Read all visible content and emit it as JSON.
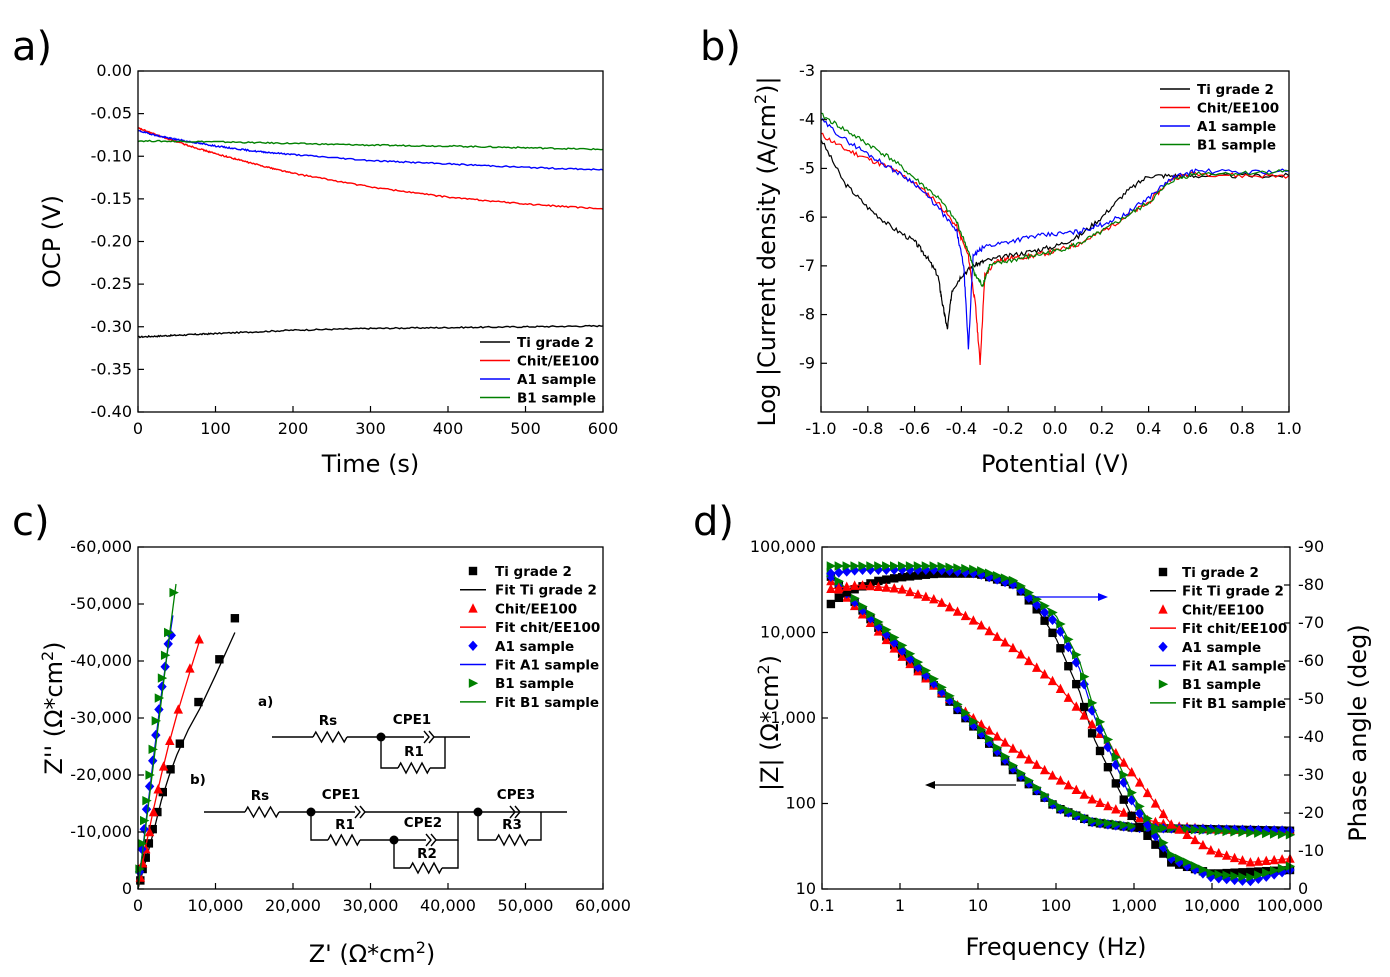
{
  "colors": {
    "ti": "#000000",
    "chit": "#ff0000",
    "a1": "#0000ff",
    "b1": "#008000",
    "right_axis": "#0000ff"
  },
  "panels": [
    {
      "label": "a)",
      "chart_data": {
        "type": "line",
        "xlabel": "Time (s)",
        "ylabel": "OCP (V)",
        "xlim": [
          0,
          600
        ],
        "ylim": [
          -0.4,
          0.0
        ],
        "xticks": [
          "0",
          "100",
          "200",
          "300",
          "400",
          "500",
          "600"
        ],
        "yticks": [
          "0.00",
          "-0.05",
          "-0.10",
          "-0.15",
          "-0.20",
          "-0.25",
          "-0.30",
          "-0.35",
          "-0.40"
        ],
        "series": [
          {
            "name": "Ti grade 2",
            "color": "ti",
            "x": [
              0,
              50,
              100,
              200,
              300,
              400,
              500,
              600
            ],
            "y": [
              -0.312,
              -0.31,
              -0.308,
              -0.304,
              -0.302,
              -0.301,
              -0.3,
              -0.299
            ]
          },
          {
            "name": "Chit/EE100",
            "color": "chit",
            "x": [
              0,
              30,
              60,
              100,
              150,
              200,
              300,
              400,
              500,
              600
            ],
            "y": [
              -0.067,
              -0.077,
              -0.086,
              -0.097,
              -0.109,
              -0.12,
              -0.136,
              -0.148,
              -0.156,
              -0.162
            ]
          },
          {
            "name": "A1 sample",
            "color": "a1",
            "x": [
              0,
              30,
              60,
              100,
              150,
              200,
              300,
              400,
              500,
              600
            ],
            "y": [
              -0.07,
              -0.077,
              -0.082,
              -0.088,
              -0.094,
              -0.098,
              -0.105,
              -0.109,
              -0.113,
              -0.116
            ]
          },
          {
            "name": "B1 sample",
            "color": "b1",
            "x": [
              0,
              100,
              200,
              300,
              400,
              500,
              600
            ],
            "y": [
              -0.082,
              -0.083,
              -0.085,
              -0.087,
              -0.088,
              -0.09,
              -0.092
            ]
          }
        ]
      }
    },
    {
      "label": "b)",
      "chart_data": {
        "type": "line",
        "xlabel": "Potential (V)",
        "ylabel_pre": "Log |Current density (A/cm",
        "ylabel_sup": "2",
        "ylabel_post": ")|",
        "xlim": [
          -1.0,
          1.0
        ],
        "ylim": [
          -10,
          -3
        ],
        "xticks": [
          "-1.0",
          "-0.8",
          "-0.6",
          "-0.4",
          "-0.2",
          "0.0",
          "0.2",
          "0.4",
          "0.6",
          "0.8",
          "1.0"
        ],
        "yticks": [
          "-3",
          "-4",
          "-5",
          "-6",
          "-7",
          "-8",
          "-9",
          "-10"
        ],
        "series": [
          {
            "name": "Ti grade 2",
            "color": "ti",
            "x": [
              -1.0,
              -0.9,
              -0.8,
              -0.7,
              -0.6,
              -0.55,
              -0.5,
              -0.48,
              -0.46,
              -0.44,
              -0.4,
              -0.35,
              -0.3,
              -0.2,
              -0.1,
              0.0,
              0.1,
              0.2,
              0.3,
              0.4,
              0.5,
              0.6,
              0.8,
              1.0
            ],
            "y": [
              -4.4,
              -5.3,
              -5.8,
              -6.2,
              -6.5,
              -6.8,
              -7.2,
              -7.8,
              -8.3,
              -7.5,
              -7.2,
              -7.0,
              -6.9,
              -6.8,
              -6.7,
              -6.6,
              -6.4,
              -6.0,
              -5.5,
              -5.15,
              -5.15,
              -5.15,
              -5.15,
              -5.15
            ]
          },
          {
            "name": "Chit/EE100",
            "color": "chit",
            "x": [
              -1.0,
              -0.9,
              -0.8,
              -0.7,
              -0.6,
              -0.5,
              -0.42,
              -0.37,
              -0.34,
              -0.32,
              -0.3,
              -0.25,
              -0.2,
              -0.1,
              0.0,
              0.1,
              0.2,
              0.3,
              0.4,
              0.5,
              0.6,
              0.8,
              1.0
            ],
            "y": [
              -4.3,
              -4.6,
              -4.8,
              -5.0,
              -5.3,
              -5.7,
              -6.2,
              -6.8,
              -7.8,
              -9.0,
              -7.2,
              -6.9,
              -6.85,
              -6.8,
              -6.7,
              -6.55,
              -6.3,
              -6.0,
              -5.7,
              -5.2,
              -5.1,
              -5.15,
              -5.15
            ]
          },
          {
            "name": "A1 sample",
            "color": "a1",
            "x": [
              -1.0,
              -0.9,
              -0.8,
              -0.7,
              -0.6,
              -0.5,
              -0.42,
              -0.39,
              -0.37,
              -0.35,
              -0.3,
              -0.2,
              -0.1,
              0.0,
              0.1,
              0.2,
              0.3,
              0.4,
              0.5,
              0.6,
              0.8,
              1.0
            ],
            "y": [
              -4.0,
              -4.4,
              -4.7,
              -5.0,
              -5.3,
              -5.8,
              -6.3,
              -7.0,
              -8.7,
              -6.8,
              -6.6,
              -6.5,
              -6.4,
              -6.35,
              -6.3,
              -6.15,
              -5.95,
              -5.6,
              -5.2,
              -5.05,
              -5.08,
              -5.05
            ]
          },
          {
            "name": "B1 sample",
            "color": "b1",
            "x": [
              -1.0,
              -0.9,
              -0.8,
              -0.7,
              -0.6,
              -0.5,
              -0.42,
              -0.37,
              -0.34,
              -0.31,
              -0.28,
              -0.2,
              -0.1,
              0.0,
              0.1,
              0.2,
              0.3,
              0.4,
              0.5,
              0.6,
              0.8,
              1.0
            ],
            "y": [
              -3.9,
              -4.2,
              -4.5,
              -4.8,
              -5.2,
              -5.6,
              -6.1,
              -6.7,
              -7.2,
              -7.4,
              -7.0,
              -6.9,
              -6.8,
              -6.7,
              -6.55,
              -6.3,
              -6.0,
              -5.7,
              -5.25,
              -5.1,
              -5.1,
              -5.05
            ]
          }
        ]
      }
    },
    {
      "label": "c)",
      "chart_data": {
        "type": "scatter",
        "xlabel_pre": "Z' (",
        "xlabel_post": "*cm",
        "xlabel_sup": "2",
        "xlabel_end": ")",
        "ylabel_pre": "Z'' (",
        "ylabel_post": "*cm",
        "ylabel_sup": "2",
        "ylabel_end": ")",
        "omega": "Ω",
        "xlim": [
          0,
          60000
        ],
        "ylim": [
          0,
          -60000
        ],
        "xticks": [
          "0",
          "10,000",
          "20,000",
          "30,000",
          "40,000",
          "50,000",
          "60,000"
        ],
        "yticks": [
          "0",
          "-10,000",
          "-20,000",
          "-30,000",
          "-40,000",
          "-50,000",
          "-60,000"
        ],
        "series": [
          {
            "name": "Ti grade 2",
            "color": "ti",
            "marker": "square",
            "x": [
              300,
              600,
              1000,
              1400,
              1900,
              2500,
              3200,
              4200,
              5400,
              7800,
              10500,
              12500
            ],
            "y": [
              -1500,
              -3500,
              -5500,
              -8000,
              -10500,
              -13500,
              -17000,
              -21000,
              -25500,
              -32800,
              -40300,
              -47500
            ]
          },
          {
            "name": "Fit Ti grade 2",
            "color": "ti",
            "marker": "line",
            "x": [
              0,
              1000,
              2000,
              3000,
              4000,
              5000,
              6500,
              8000,
              10000,
              12500
            ],
            "y": [
              0,
              -5000,
              -10000,
              -15500,
              -19800,
              -23500,
              -28000,
              -31700,
              -37500,
              -45000
            ]
          },
          {
            "name": "Chit/EE100",
            "color": "chit",
            "marker": "triangle",
            "x": [
              300,
              600,
              1000,
              1500,
              2000,
              2600,
              3300,
              4100,
              5200,
              6700,
              7900
            ],
            "y": [
              -2000,
              -4500,
              -7000,
              -10000,
              -13500,
              -17500,
              -21500,
              -26000,
              -31500,
              -38700,
              -43800
            ]
          },
          {
            "name": "Fit chit/EE100",
            "color": "chit",
            "marker": "line",
            "x": [
              0,
              1000,
              2000,
              3000,
              4000,
              5000,
              6000,
              7000,
              8000
            ],
            "y": [
              0,
              -7500,
              -14000,
              -20000,
              -25500,
              -30500,
              -35000,
              -39500,
              -43800
            ]
          },
          {
            "name": "A1 sample",
            "color": "a1",
            "marker": "diamond",
            "x": [
              200,
              500,
              800,
              1100,
              1500,
              1900,
              2300,
              2700,
              3100,
              3500,
              3900,
              4300
            ],
            "y": [
              -3000,
              -7000,
              -10500,
              -14000,
              -18000,
              -22500,
              -27000,
              -31500,
              -35500,
              -39000,
              -43000,
              -44500
            ]
          },
          {
            "name": "Fit A1 sample",
            "color": "a1",
            "marker": "line",
            "x": [
              0,
              1000,
              2000,
              3000,
              4000,
              4500
            ],
            "y": [
              0,
              -11500,
              -23000,
              -34000,
              -43500,
              -48000
            ]
          },
          {
            "name": "B1 sample",
            "color": "b1",
            "marker": "triangle-right",
            "x": [
              200,
              500,
              800,
              1100,
              1500,
              1900,
              2300,
              2700,
              3100,
              3500,
              3900,
              4600
            ],
            "y": [
              -3500,
              -8000,
              -12000,
              -15500,
              -20000,
              -24500,
              -29500,
              -33500,
              -37000,
              -41000,
              -45000,
              -52000
            ]
          },
          {
            "name": "Fit B1 sample",
            "color": "b1",
            "marker": "line",
            "x": [
              0,
              1000,
              2000,
              3000,
              4000,
              4900
            ],
            "y": [
              0,
              -11000,
              -22000,
              -33000,
              -44000,
              -53500
            ]
          }
        ],
        "inset": {
          "label_a": "a)",
          "label_b": "b)",
          "rs": "Rs",
          "cpe1": "CPE1",
          "r1": "R1",
          "cpe2": "CPE2",
          "r2": "R2",
          "cpe3": "CPE3",
          "r3": "R3"
        }
      }
    },
    {
      "label": "d)",
      "chart_data": {
        "type": "scatter",
        "xlabel": "Frequency (Hz)",
        "ylabel_pre": "|Z| (",
        "ylabel_post": "*cm",
        "ylabel_sup": "2",
        "ylabel_end": ")",
        "omega": "Ω",
        "ylabel_right": "Phase angle (deg)",
        "xscale": "log",
        "xlim": [
          0.1,
          100000
        ],
        "yscale": "log",
        "ylim": [
          10,
          100000
        ],
        "y2lim": [
          0,
          -90
        ],
        "xticks": [
          "0.1",
          "1",
          "10",
          "100",
          "1,000",
          "10,000",
          "100,000"
        ],
        "yticks": [
          "10",
          "100",
          "1,000",
          "10,000",
          "100,000"
        ],
        "y2ticks": [
          "0",
          "-10",
          "-20",
          "-30",
          "-40",
          "-50",
          "-60",
          "-70",
          "-80",
          "-90"
        ],
        "impedance": [
          {
            "name": "Ti grade 2",
            "color": "ti",
            "freq": [
              0.13,
              0.3,
              1,
              3,
              10,
              30,
              100,
              300,
              1000,
              10000,
              100000
            ],
            "z": [
              45000,
              20000,
              6000,
              2200,
              700,
              230,
              90,
              60,
              52,
              50,
              48
            ]
          },
          {
            "name": "Chit/EE100",
            "color": "chit",
            "freq": [
              0.13,
              0.3,
              1,
              3,
              10,
              30,
              100,
              300,
              1000,
              3000,
              10000,
              100000
            ],
            "z": [
              40000,
              18000,
              5500,
              2200,
              900,
              420,
              200,
              110,
              70,
              55,
              50,
              48
            ]
          },
          {
            "name": "A1 sample",
            "color": "a1",
            "freq": [
              0.13,
              0.3,
              1,
              3,
              10,
              30,
              100,
              300,
              1000,
              10000,
              100000
            ],
            "z": [
              45000,
              20000,
              6500,
              2300,
              720,
              240,
              90,
              60,
              52,
              50,
              48
            ]
          },
          {
            "name": "B1 sample",
            "color": "b1",
            "freq": [
              0.13,
              0.3,
              1,
              3,
              10,
              30,
              100,
              300,
              1000,
              10000,
              100000
            ],
            "z": [
              50000,
              22000,
              7500,
              2600,
              800,
              260,
              95,
              62,
              54,
              48,
              43
            ]
          }
        ],
        "phase": [
          {
            "name": "Ti grade 2",
            "color": "ti",
            "freq": [
              0.13,
              0.2,
              0.5,
              1,
              3,
              10,
              30,
              60,
              100,
              200,
              300,
              1000,
              3000,
              10000,
              100000
            ],
            "deg": [
              -75,
              -78,
              -81,
              -82,
              -83,
              -83,
              -80,
              -73,
              -66,
              -52,
              -40,
              -18,
              -7,
              -4,
              -5
            ]
          },
          {
            "name": "Chit/EE100",
            "color": "chit",
            "freq": [
              0.13,
              0.3,
              1,
              3,
              10,
              30,
              100,
              300,
              1000,
              3000,
              10000,
              30000,
              100000
            ],
            "deg": [
              -79,
              -80,
              -79,
              -76,
              -70,
              -63,
              -54,
              -43,
              -30,
              -17,
              -10,
              -7,
              -8
            ]
          },
          {
            "name": "A1 sample",
            "color": "a1",
            "freq": [
              0.13,
              0.3,
              1,
              3,
              10,
              30,
              100,
              200,
              300,
              1000,
              3000,
              10000,
              30000,
              100000
            ],
            "deg": [
              -83,
              -84,
              -84,
              -84,
              -83,
              -80,
              -70,
              -58,
              -46,
              -22,
              -8,
              -3,
              -2,
              -5
            ]
          },
          {
            "name": "B1 sample",
            "color": "b1",
            "freq": [
              0.13,
              0.3,
              1,
              3,
              10,
              30,
              100,
              200,
              300,
              1000,
              3000,
              10000,
              30000,
              100000
            ],
            "deg": [
              -85,
              -85,
              -85,
              -85,
              -84,
              -81,
              -72,
              -60,
              -48,
              -24,
              -9,
              -4,
              -3,
              -6
            ]
          }
        ],
        "legend": [
          "Ti grade 2",
          "Fit Ti grade 2",
          "Chit/EE100",
          "Fit chit/EE100",
          "A1 sample",
          "Fit A1 sample",
          "B1 sample",
          "Fit B1 sample"
        ]
      }
    }
  ]
}
